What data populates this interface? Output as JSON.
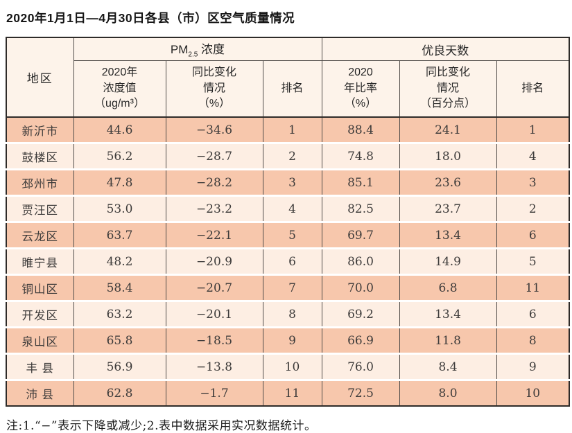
{
  "page": {
    "title": "2020年1月1日—4月30日各县（市）区空气质量情况",
    "note": "注:1.“−”表示下降或减少;2.表中数据采用实况数据统计。"
  },
  "colors": {
    "row_odd": "#f7c7ac",
    "row_even": "#fdeee3",
    "header_bg": "#fdf3ea",
    "border_outer": "#2e2b29",
    "border_inner": "#4f4b48"
  },
  "table": {
    "header": {
      "region": "地区",
      "pm_group_prefix": "PM",
      "pm_group_sub": "2.5",
      "pm_group_suffix": " 浓度",
      "good_group": "优良天数",
      "pm_value": "2020年\n浓度值\n（ug/m³）",
      "pm_change": "同比变化\n情况\n（%）",
      "pm_rank": "排名",
      "good_rate": "2020\n年比率\n（%）",
      "good_change": "同比变化\n情况\n（百分点）",
      "good_rank": "排名"
    },
    "rows": [
      {
        "region": "新沂市",
        "pm_value": "44.6",
        "pm_change": "−34.6",
        "pm_rank": "1",
        "good_rate": "88.4",
        "good_change": "24.1",
        "good_rank": "1"
      },
      {
        "region": "鼓楼区",
        "pm_value": "56.2",
        "pm_change": "−28.7",
        "pm_rank": "2",
        "good_rate": "74.8",
        "good_change": "18.0",
        "good_rank": "4"
      },
      {
        "region": "邳州市",
        "pm_value": "47.8",
        "pm_change": "−28.2",
        "pm_rank": "3",
        "good_rate": "85.1",
        "good_change": "23.6",
        "good_rank": "3"
      },
      {
        "region": "贾汪区",
        "pm_value": "53.0",
        "pm_change": "−23.2",
        "pm_rank": "4",
        "good_rate": "82.5",
        "good_change": "23.7",
        "good_rank": "2"
      },
      {
        "region": "云龙区",
        "pm_value": "63.7",
        "pm_change": "−22.1",
        "pm_rank": "5",
        "good_rate": "69.7",
        "good_change": "13.4",
        "good_rank": "6"
      },
      {
        "region": "睢宁县",
        "pm_value": "48.2",
        "pm_change": "−20.9",
        "pm_rank": "6",
        "good_rate": "86.0",
        "good_change": "14.9",
        "good_rank": "5"
      },
      {
        "region": "铜山区",
        "pm_value": "58.4",
        "pm_change": "−20.7",
        "pm_rank": "7",
        "good_rate": "70.0",
        "good_change": "6.8",
        "good_rank": "11"
      },
      {
        "region": "开发区",
        "pm_value": "63.2",
        "pm_change": "−20.1",
        "pm_rank": "8",
        "good_rate": "69.2",
        "good_change": "13.4",
        "good_rank": "6"
      },
      {
        "region": "泉山区",
        "pm_value": "65.8",
        "pm_change": "−18.5",
        "pm_rank": "9",
        "good_rate": "66.9",
        "good_change": "11.8",
        "good_rank": "8"
      },
      {
        "region": "丰 县",
        "pm_value": "56.9",
        "pm_change": "−13.8",
        "pm_rank": "10",
        "good_rate": "76.0",
        "good_change": "8.4",
        "good_rank": "9"
      },
      {
        "region": "沛 县",
        "pm_value": "62.8",
        "pm_change": "−1.7",
        "pm_rank": "11",
        "good_rate": "72.5",
        "good_change": "8.0",
        "good_rank": "10"
      }
    ]
  }
}
